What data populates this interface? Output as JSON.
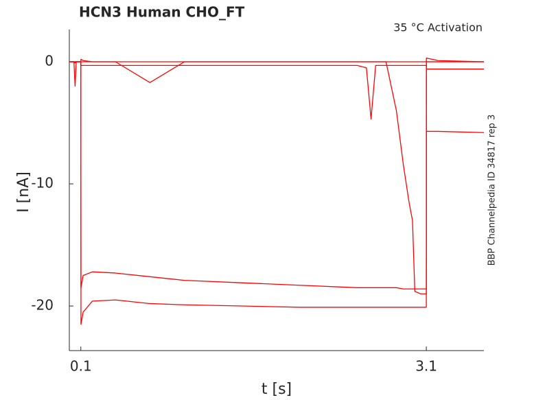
{
  "chart_data": {
    "type": "line",
    "title": "HCN3  Human  CHO_FT",
    "annotation": "35 °C  Activation",
    "side_note": "BBP Channelpedia ID 34817 rep 3",
    "x_label": "t [s]",
    "y_label": "I [nA]",
    "xlim": [
      0,
      3.6
    ],
    "ylim": [
      -23.65,
      2.64
    ],
    "xticks": [
      0.1,
      3.1
    ],
    "yticks": [
      -20,
      -10,
      0
    ],
    "grid": false,
    "x": [
      0,
      0.04,
      0.05,
      0.06,
      0.1,
      0.101,
      0.12,
      0.2,
      0.4,
      0.7,
      1.0,
      1.5,
      2.0,
      2.5,
      2.58,
      2.62,
      2.66,
      2.75,
      2.84,
      2.9,
      2.95,
      2.98,
      3.0,
      3.05,
      3.09,
      3.1,
      3.101,
      3.2,
      3.6
    ],
    "series": [
      {
        "color": "#ff0000",
        "values": [
          0,
          0,
          -2,
          0,
          0,
          -21.5,
          -20.5,
          -19.6,
          -19.5,
          -19.8,
          -19.9,
          -20,
          -20.1,
          -20.1,
          -20.1,
          -20.1,
          -20.1,
          -20.1,
          -20.1,
          -20.1,
          -20.1,
          -20.1,
          -20.1,
          -20.1,
          -20.1,
          -20.1,
          0,
          0,
          0
        ]
      },
      {
        "color": "#ff0000",
        "values": [
          0,
          0,
          -0.1,
          0,
          0,
          -18.5,
          -17.5,
          -17.2,
          -17.3,
          -17.6,
          -17.9,
          -18.1,
          -18.3,
          -18.5,
          -18.5,
          -18.5,
          -18.5,
          -18.5,
          -18.5,
          -18.6,
          -18.6,
          -18.6,
          -18.6,
          -18.6,
          -18.6,
          -18.6,
          0,
          0,
          0
        ]
      },
      {
        "color": "#ff0000",
        "values": [
          0,
          0,
          0,
          0,
          0,
          0,
          0,
          0,
          0,
          0,
          0,
          0,
          0,
          0,
          0,
          0,
          0,
          0,
          -4,
          -8.4,
          -11.5,
          -13,
          -18.8,
          -19,
          -19,
          -19,
          -5.7,
          -5.7,
          -5.8
        ]
      },
      {
        "color": "#ff0000",
        "values": [
          0,
          0,
          0,
          0,
          0,
          -0.3,
          -0.3,
          -0.3,
          -0.3,
          -0.3,
          -0.3,
          -0.3,
          -0.3,
          -0.3,
          -0.5,
          -4.7,
          -0.3,
          -0.3,
          -0.3,
          -0.3,
          -0.3,
          -0.3,
          -0.3,
          -0.3,
          -0.3,
          -0.3,
          -0.6,
          -0.6,
          -0.6
        ]
      },
      {
        "color": "#ff0000",
        "values": [
          0,
          0,
          0,
          0,
          0,
          0.2,
          0.1,
          0,
          0,
          -1.7,
          0,
          0,
          0,
          0,
          0,
          0,
          0,
          0,
          0,
          0,
          0,
          0,
          0,
          0,
          0,
          0,
          0.3,
          0.1,
          0
        ]
      }
    ]
  }
}
